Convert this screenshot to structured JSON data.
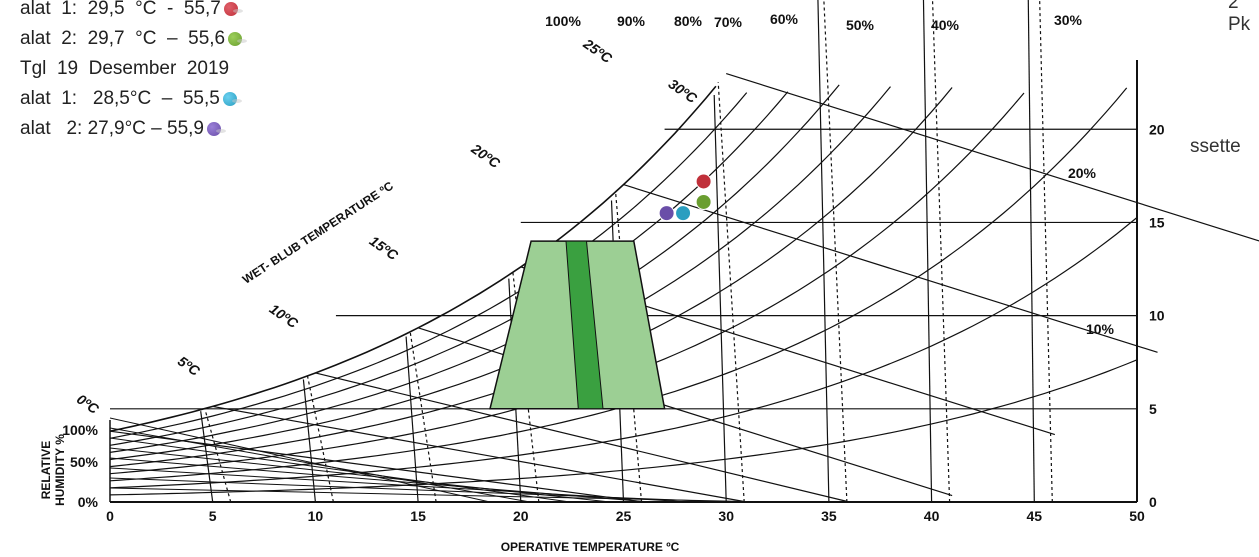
{
  "notes": {
    "line1": "alat  1:  29,5  °C  -  55,7",
    "line2": "alat  2:  29,7  °C  –  55,6",
    "line3": "Tgl  19  Desember  2019",
    "line4": "alat  1:   28,5°C  –  55,5",
    "line5": "alat   2: 27,9°C – 55,9"
  },
  "side_text": {
    "top_right": "2  Pk",
    "right": "ssette"
  },
  "colors": {
    "comfort_light": "#9ccf94",
    "comfort_dark": "#3aa040",
    "dot_red": "#c0303a",
    "dot_green": "#6a9e30",
    "dot_blue": "#2a9ec0",
    "dot_purple": "#6a4ea8"
  },
  "chart_data": {
    "type": "scatter",
    "title": "",
    "xlabel": "OPERATIVE TEMPERATURE ºC",
    "ylabel_left": "RELATIVE HUMIDITY %",
    "curve_label": "WET- BLUB TEMPERATURE ºC",
    "xlim": [
      0,
      50
    ],
    "ylim": [
      0,
      22
    ],
    "x_ticks": [
      "0",
      "5",
      "10",
      "15",
      "20",
      "25",
      "30",
      "35",
      "40",
      "45",
      "50"
    ],
    "y_ticks_right": [
      "0",
      "5",
      "10",
      "15",
      "20"
    ],
    "y_ticks_left": [
      "0%",
      "50%",
      "100%"
    ],
    "rh_curve_labels": [
      "100%",
      "90%",
      "80%",
      "70%",
      "60%",
      "50%",
      "40%",
      "30%",
      "20%",
      "10%"
    ],
    "wet_bulb_labels": [
      "0ºC",
      "5ºC",
      "10ºC",
      "15ºC",
      "20ºC",
      "25ºC",
      "30ºC"
    ],
    "comfort_zone": {
      "outer": [
        [
          18.5,
          5
        ],
        [
          27,
          5
        ],
        [
          25.5,
          14
        ],
        [
          20.5,
          14
        ]
      ],
      "inner": [
        [
          22.8,
          5
        ],
        [
          24,
          5
        ],
        [
          23.2,
          14
        ],
        [
          22.2,
          14
        ]
      ]
    },
    "points": [
      {
        "label": "alat 1 (29,5 °C – 55,7)",
        "x": 28.9,
        "y": 17.2
      },
      {
        "label": "alat 2 (29,7 °C – 55,6)",
        "x": 28.9,
        "y": 16.1
      },
      {
        "label": "alat 1 (28,5 °C – 55,5)",
        "x": 27.9,
        "y": 15.5
      },
      {
        "label": "alat 2 (27,9 °C – 55,9)",
        "x": 27.1,
        "y": 15.5
      }
    ]
  }
}
